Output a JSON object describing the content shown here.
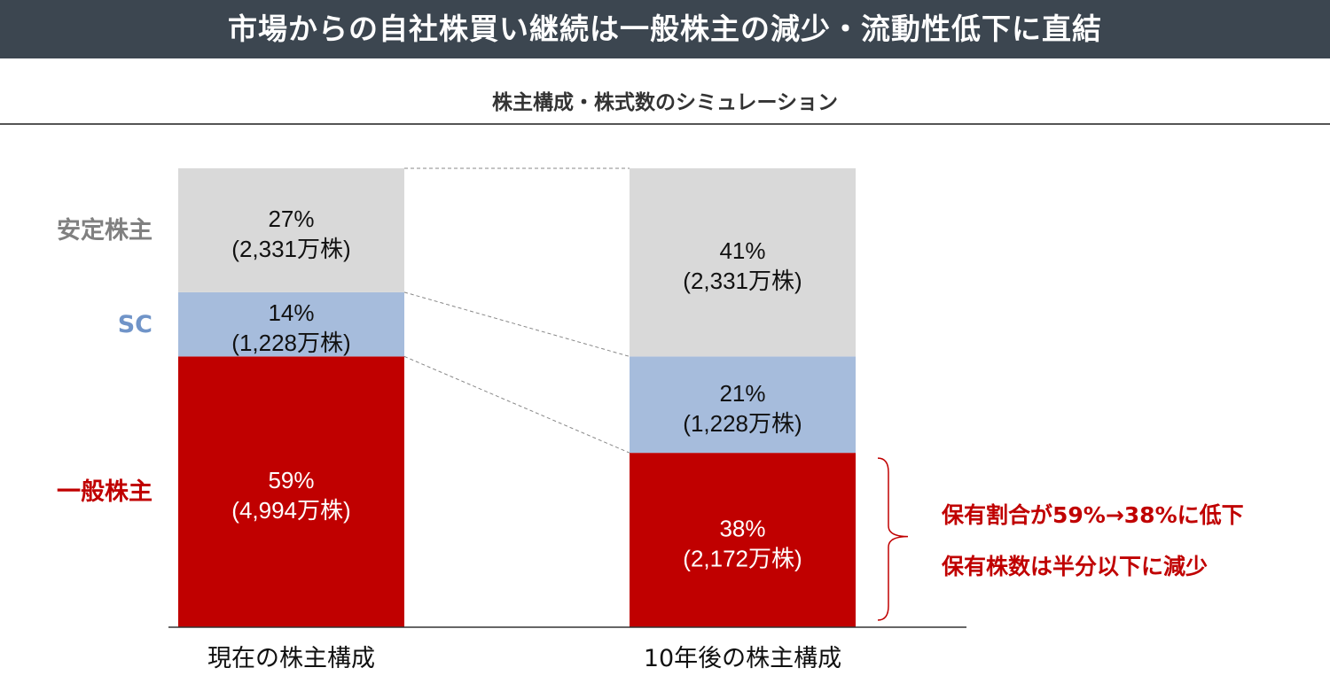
{
  "header": {
    "title": "市場からの自社株買い継続は一般株主の減少・流動性低下に直結"
  },
  "subtitle": "株主構成・株式数のシミュレーション",
  "legend_labels": {
    "stable": "安定株主",
    "sc": "SC",
    "general": "一般株主"
  },
  "colors": {
    "stable": "#d9d9d9",
    "sc": "#a6bcdc",
    "general": "#c00000",
    "header_bg": "#3c4650",
    "note": "#c00000"
  },
  "notes": {
    "line1": "保有割合が59%→38%に低下",
    "line2": "保有株数は半分以下に減少"
  },
  "chart_data": {
    "type": "bar",
    "stacked": true,
    "normalized": true,
    "categories": [
      "現在の株主構成",
      "10年後の株主構成"
    ],
    "series": [
      {
        "name": "一般株主",
        "values": [
          59,
          38
        ],
        "labels": [
          "59%",
          "38%"
        ],
        "sublabels": [
          "(4,994万株)",
          "(2,172万株)"
        ]
      },
      {
        "name": "SC",
        "values": [
          14,
          21
        ],
        "labels": [
          "14%",
          "21%"
        ],
        "sublabels": [
          "(1,228万株)",
          "(1,228万株)"
        ]
      },
      {
        "name": "安定株主",
        "values": [
          27,
          41
        ],
        "labels": [
          "27%",
          "41%"
        ],
        "sublabels": [
          "(2,331万株)",
          "(2,331万株)"
        ]
      }
    ],
    "ylim": [
      0,
      100
    ],
    "connectors": "dashed",
    "grid": false
  }
}
